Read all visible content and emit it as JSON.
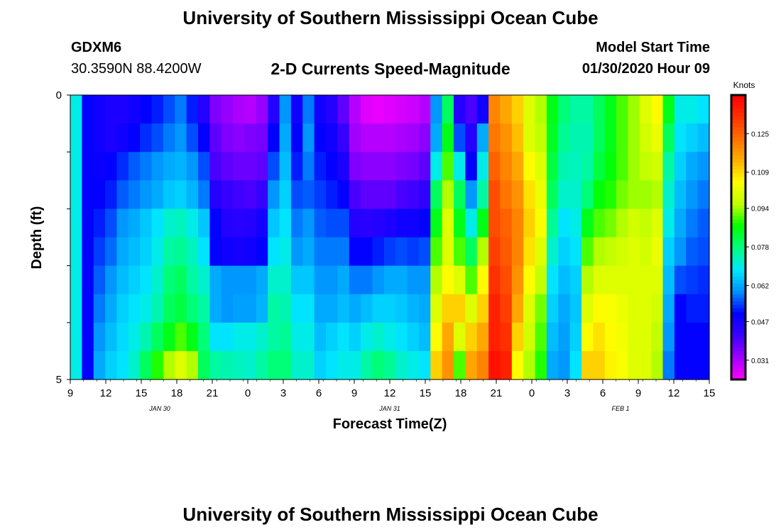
{
  "header": {
    "title": "University of Southern Mississippi Ocean Cube",
    "station_id": "GDXM6",
    "station_coords": "30.3590N 88.4200W",
    "subtitle": "2-D Currents Speed-Magnitude",
    "model_label": "Model Start Time",
    "model_time": "01/30/2020 Hour 09"
  },
  "footer": {
    "title": "University of Southern Mississippi Ocean Cube"
  },
  "chart_data": {
    "type": "heatmap",
    "title": "2-D Currents Speed-Magnitude",
    "xlabel": "Forecast Time(Z)",
    "ylabel": "Depth (ft)",
    "x_tick_labels": [
      "9",
      "12",
      "15",
      "18",
      "21",
      "0",
      "3",
      "6",
      "9",
      "12",
      "15",
      "18",
      "21",
      "0",
      "3",
      "6",
      "9",
      "12",
      "15"
    ],
    "date_labels": [
      "JAN 30",
      "JAN 31",
      "FEB 1"
    ],
    "y_tick_labels": [
      "0",
      "5"
    ],
    "ylim": [
      0,
      5
    ],
    "colorbar": {
      "unit": "Knots",
      "tick_labels": [
        "0.125",
        "0.109",
        "0.094",
        "0.078",
        "0.062",
        "0.047",
        "0.031"
      ],
      "min": 0.023,
      "max": 0.141,
      "colors": [
        "#ff00ff",
        "#a000ff",
        "#3c00ff",
        "#0000ff",
        "#0090ff",
        "#00e8ff",
        "#00ff80",
        "#00ff00",
        "#c0ff00",
        "#ffff00",
        "#ffb000",
        "#ff7000",
        "#ff3000",
        "#ff0000"
      ]
    },
    "depth_rows": 10,
    "hours": 55,
    "columns": [
      {
        "t": 0,
        "v": [
          0.07,
          0.07,
          0.07,
          0.07,
          0.07,
          0.07,
          0.07,
          0.07,
          0.07,
          0.07
        ]
      },
      {
        "t": 1,
        "v": [
          0.05,
          0.05,
          0.05,
          0.05,
          0.05,
          0.05,
          0.05,
          0.05,
          0.05,
          0.05
        ]
      },
      {
        "t": 2,
        "v": [
          0.048,
          0.048,
          0.049,
          0.05,
          0.052,
          0.054,
          0.056,
          0.058,
          0.06,
          0.062
        ]
      },
      {
        "t": 3,
        "v": [
          0.046,
          0.046,
          0.05,
          0.052,
          0.055,
          0.057,
          0.06,
          0.062,
          0.064,
          0.066
        ]
      },
      {
        "t": 4,
        "v": [
          0.046,
          0.048,
          0.053,
          0.056,
          0.06,
          0.062,
          0.064,
          0.066,
          0.067,
          0.068
        ]
      },
      {
        "t": 5,
        "v": [
          0.048,
          0.05,
          0.056,
          0.058,
          0.062,
          0.064,
          0.066,
          0.068,
          0.07,
          0.072
        ]
      },
      {
        "t": 6,
        "v": [
          0.05,
          0.053,
          0.058,
          0.06,
          0.065,
          0.066,
          0.068,
          0.07,
          0.074,
          0.08
        ]
      },
      {
        "t": 7,
        "v": [
          0.052,
          0.055,
          0.06,
          0.062,
          0.068,
          0.07,
          0.072,
          0.074,
          0.08,
          0.088
        ]
      },
      {
        "t": 8,
        "v": [
          0.055,
          0.058,
          0.062,
          0.065,
          0.072,
          0.075,
          0.078,
          0.08,
          0.085,
          0.095
        ]
      },
      {
        "t": 9,
        "v": [
          0.058,
          0.06,
          0.063,
          0.066,
          0.073,
          0.076,
          0.08,
          0.082,
          0.09,
          0.1
        ]
      },
      {
        "t": 10,
        "v": [
          0.052,
          0.055,
          0.06,
          0.063,
          0.07,
          0.073,
          0.075,
          0.078,
          0.085,
          0.095
        ]
      },
      {
        "t": 11,
        "v": [
          0.045,
          0.05,
          0.055,
          0.058,
          0.065,
          0.068,
          0.072,
          0.075,
          0.078,
          0.08
        ]
      },
      {
        "t": 12,
        "v": [
          0.035,
          0.038,
          0.04,
          0.045,
          0.05,
          0.05,
          0.062,
          0.062,
          0.068,
          0.075
        ]
      },
      {
        "t": 13,
        "v": [
          0.033,
          0.035,
          0.038,
          0.042,
          0.045,
          0.048,
          0.06,
          0.06,
          0.068,
          0.074
        ]
      },
      {
        "t": 14,
        "v": [
          0.031,
          0.034,
          0.037,
          0.041,
          0.044,
          0.047,
          0.06,
          0.061,
          0.07,
          0.073
        ]
      },
      {
        "t": 15,
        "v": [
          0.03,
          0.035,
          0.037,
          0.04,
          0.045,
          0.048,
          0.06,
          0.061,
          0.07,
          0.072
        ]
      },
      {
        "t": 16,
        "v": [
          0.033,
          0.036,
          0.038,
          0.042,
          0.047,
          0.05,
          0.062,
          0.063,
          0.072,
          0.075
        ]
      },
      {
        "t": 17,
        "v": [
          0.045,
          0.05,
          0.055,
          0.06,
          0.065,
          0.068,
          0.072,
          0.075,
          0.075,
          0.078
        ]
      },
      {
        "t": 18,
        "v": [
          0.06,
          0.062,
          0.064,
          0.066,
          0.068,
          0.07,
          0.072,
          0.074,
          0.076,
          0.078
        ]
      },
      {
        "t": 19,
        "v": [
          0.048,
          0.05,
          0.052,
          0.055,
          0.058,
          0.06,
          0.065,
          0.068,
          0.07,
          0.072
        ]
      },
      {
        "t": 20,
        "v": [
          0.058,
          0.06,
          0.058,
          0.056,
          0.06,
          0.062,
          0.065,
          0.068,
          0.07,
          0.072
        ]
      },
      {
        "t": 21,
        "v": [
          0.048,
          0.05,
          0.052,
          0.054,
          0.056,
          0.058,
          0.06,
          0.062,
          0.064,
          0.066
        ]
      },
      {
        "t": 22,
        "v": [
          0.045,
          0.048,
          0.05,
          0.052,
          0.055,
          0.058,
          0.06,
          0.062,
          0.066,
          0.068
        ]
      },
      {
        "t": 23,
        "v": [
          0.038,
          0.042,
          0.046,
          0.05,
          0.055,
          0.058,
          0.062,
          0.064,
          0.068,
          0.07
        ]
      },
      {
        "t": 24,
        "v": [
          0.03,
          0.032,
          0.035,
          0.04,
          0.045,
          0.05,
          0.058,
          0.062,
          0.066,
          0.07
        ]
      },
      {
        "t": 25,
        "v": [
          0.026,
          0.03,
          0.034,
          0.038,
          0.044,
          0.05,
          0.058,
          0.064,
          0.07,
          0.075
        ]
      },
      {
        "t": 26,
        "v": [
          0.025,
          0.03,
          0.034,
          0.038,
          0.045,
          0.052,
          0.06,
          0.066,
          0.072,
          0.078
        ]
      },
      {
        "t": 27,
        "v": [
          0.026,
          0.03,
          0.034,
          0.038,
          0.046,
          0.054,
          0.062,
          0.066,
          0.07,
          0.076
        ]
      },
      {
        "t": 28,
        "v": [
          0.027,
          0.031,
          0.035,
          0.04,
          0.048,
          0.055,
          0.062,
          0.065,
          0.068,
          0.072
        ]
      },
      {
        "t": 29,
        "v": [
          0.028,
          0.032,
          0.036,
          0.041,
          0.048,
          0.054,
          0.06,
          0.063,
          0.066,
          0.07
        ]
      },
      {
        "t": 30,
        "v": [
          0.03,
          0.034,
          0.038,
          0.043,
          0.05,
          0.055,
          0.06,
          0.062,
          0.064,
          0.068
        ]
      },
      {
        "t": 31,
        "v": [
          0.06,
          0.062,
          0.07,
          0.08,
          0.085,
          0.09,
          0.095,
          0.1,
          0.105,
          0.11
        ]
      },
      {
        "t": 32,
        "v": [
          0.08,
          0.085,
          0.09,
          0.095,
          0.1,
          0.1,
          0.105,
          0.11,
          0.115,
          0.118
        ]
      },
      {
        "t": 33,
        "v": [
          0.045,
          0.055,
          0.07,
          0.08,
          0.085,
          0.09,
          0.1,
          0.11,
          0.1,
          0.09
        ]
      },
      {
        "t": 34,
        "v": [
          0.04,
          0.045,
          0.05,
          0.06,
          0.07,
          0.08,
          0.09,
          0.1,
          0.11,
          0.115
        ]
      },
      {
        "t": 35,
        "v": [
          0.048,
          0.062,
          0.07,
          0.075,
          0.085,
          0.095,
          0.105,
          0.11,
          0.115,
          0.12
        ]
      },
      {
        "t": 36,
        "v": [
          0.12,
          0.122,
          0.125,
          0.128,
          0.128,
          0.13,
          0.132,
          0.135,
          0.135,
          0.138
        ]
      },
      {
        "t": 37,
        "v": [
          0.115,
          0.118,
          0.12,
          0.122,
          0.125,
          0.126,
          0.128,
          0.13,
          0.132,
          0.135
        ]
      },
      {
        "t": 38,
        "v": [
          0.11,
          0.112,
          0.115,
          0.118,
          0.12,
          0.12,
          0.118,
          0.115,
          0.11,
          0.105
        ]
      },
      {
        "t": 39,
        "v": [
          0.1,
          0.1,
          0.105,
          0.108,
          0.11,
          0.108,
          0.105,
          0.1,
          0.098,
          0.095
        ]
      },
      {
        "t": 40,
        "v": [
          0.095,
          0.096,
          0.1,
          0.102,
          0.104,
          0.1,
          0.096,
          0.092,
          0.09,
          0.088
        ]
      },
      {
        "t": 41,
        "v": [
          0.085,
          0.084,
          0.082,
          0.08,
          0.076,
          0.072,
          0.068,
          0.066,
          0.064,
          0.062
        ]
      },
      {
        "t": 42,
        "v": [
          0.078,
          0.076,
          0.074,
          0.072,
          0.068,
          0.066,
          0.064,
          0.062,
          0.061,
          0.06
        ]
      },
      {
        "t": 43,
        "v": [
          0.075,
          0.074,
          0.073,
          0.072,
          0.07,
          0.068,
          0.066,
          0.065,
          0.066,
          0.068
        ]
      },
      {
        "t": 44,
        "v": [
          0.075,
          0.074,
          0.075,
          0.078,
          0.085,
          0.09,
          0.095,
          0.1,
          0.105,
          0.11
        ]
      },
      {
        "t": 45,
        "v": [
          0.08,
          0.08,
          0.082,
          0.086,
          0.09,
          0.095,
          0.1,
          0.105,
          0.108,
          0.11
        ]
      },
      {
        "t": 46,
        "v": [
          0.085,
          0.085,
          0.086,
          0.088,
          0.092,
          0.096,
          0.1,
          0.104,
          0.105,
          0.106
        ]
      },
      {
        "t": 47,
        "v": [
          0.09,
          0.09,
          0.09,
          0.092,
          0.095,
          0.098,
          0.1,
          0.102,
          0.103,
          0.104
        ]
      },
      {
        "t": 48,
        "v": [
          0.094,
          0.094,
          0.094,
          0.094,
          0.098,
          0.1,
          0.1,
          0.1,
          0.1,
          0.1
        ]
      },
      {
        "t": 49,
        "v": [
          0.1,
          0.098,
          0.096,
          0.094,
          0.096,
          0.098,
          0.1,
          0.1,
          0.1,
          0.1
        ]
      },
      {
        "t": 50,
        "v": [
          0.105,
          0.102,
          0.098,
          0.095,
          0.1,
          0.102,
          0.1,
          0.098,
          0.096,
          0.095
        ]
      },
      {
        "t": 51,
        "v": [
          0.085,
          0.08,
          0.075,
          0.072,
          0.07,
          0.066,
          0.064,
          0.062,
          0.06,
          0.058
        ]
      },
      {
        "t": 52,
        "v": [
          0.07,
          0.068,
          0.066,
          0.064,
          0.062,
          0.06,
          0.055,
          0.05,
          0.05,
          0.05
        ]
      },
      {
        "t": 53,
        "v": [
          0.07,
          0.066,
          0.062,
          0.06,
          0.058,
          0.056,
          0.054,
          0.052,
          0.05,
          0.05
        ]
      },
      {
        "t": 54,
        "v": [
          0.068,
          0.064,
          0.06,
          0.058,
          0.056,
          0.055,
          0.053,
          0.052,
          0.05,
          0.05
        ]
      }
    ]
  }
}
